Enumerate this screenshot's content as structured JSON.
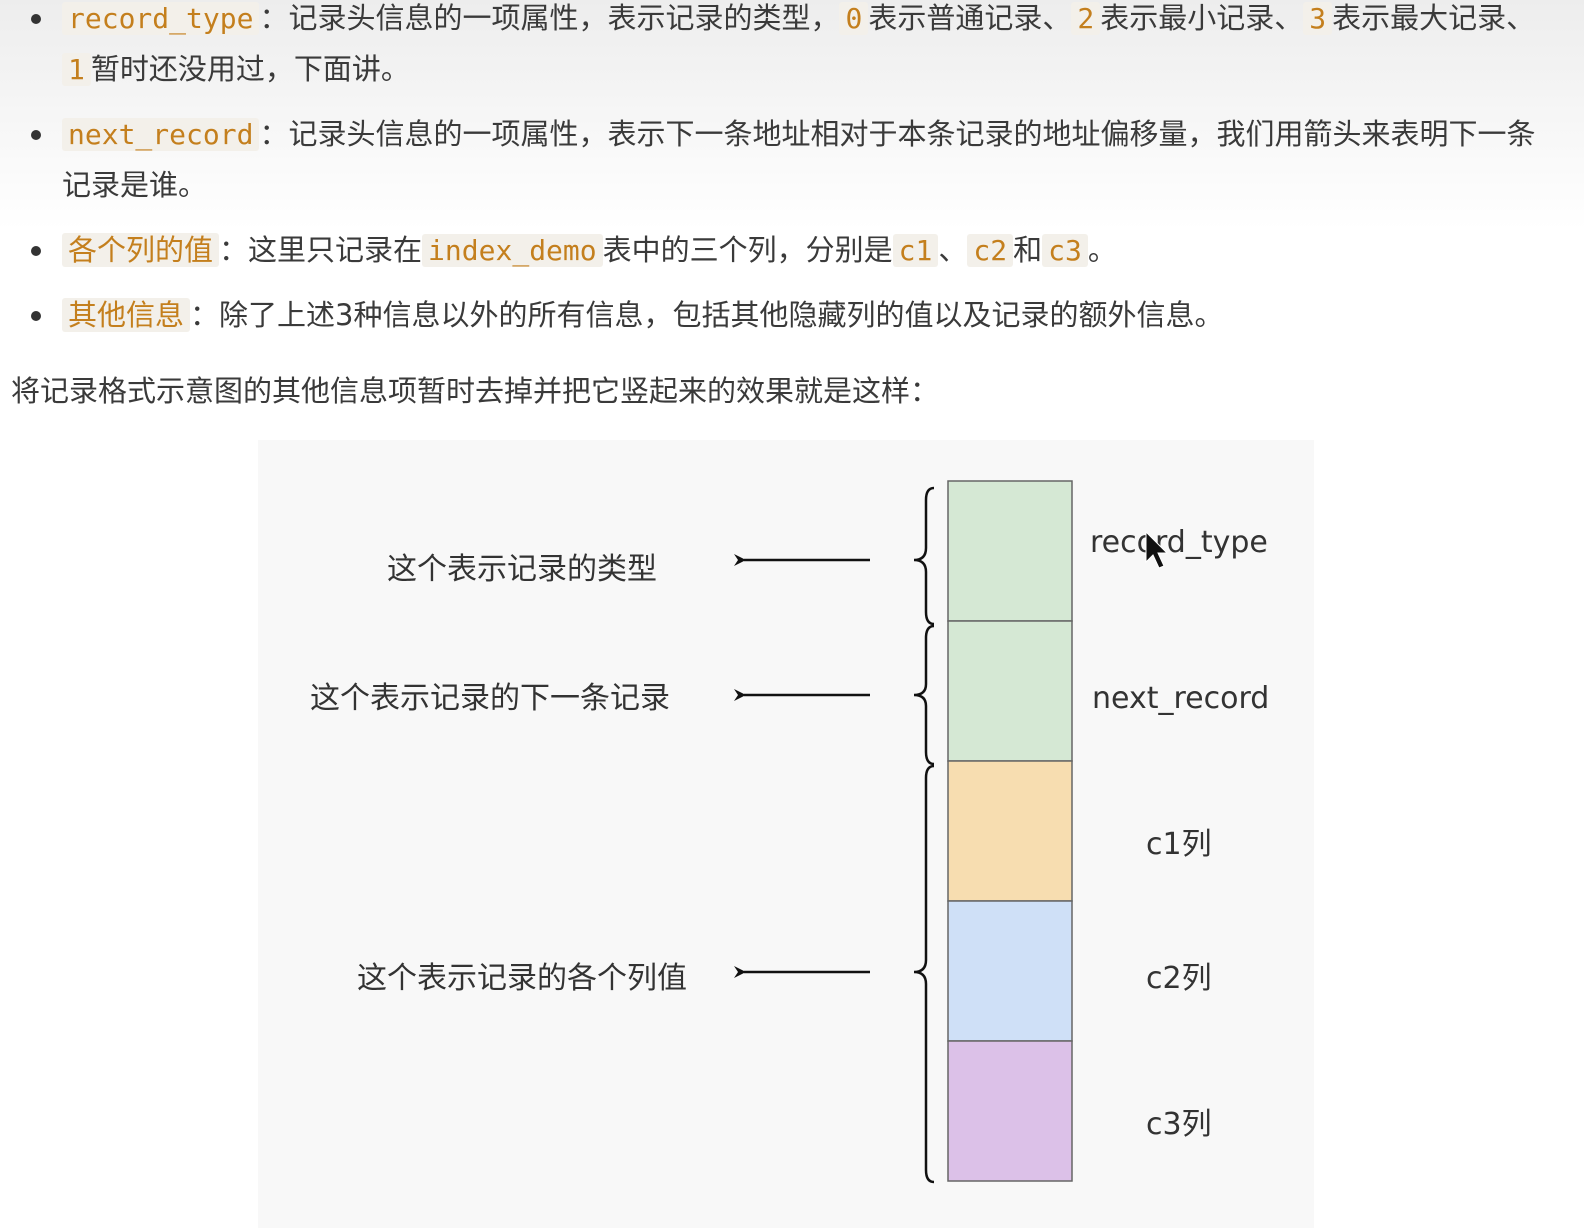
{
  "bullets": [
    {
      "term": "record_type",
      "colon": "：",
      "text_a": "记录头信息的一项属性，表示记录的类型，",
      "v0": "0",
      "text_b": "表示普通记录、",
      "v2": "2",
      "text_c": "表示最小记录、",
      "v3": "3",
      "text_d": "表示最大记录、",
      "v1": "1",
      "text_e": "暂时还没用过，下面讲。"
    },
    {
      "term": "next_record",
      "colon": "：",
      "text": "记录头信息的一项属性，表示下一条地址相对于本条记录的地址偏移量，我们用箭头来表明下一条记录是谁。"
    },
    {
      "term": "各个列的值",
      "colon": "：",
      "text_a": "这里只记录在",
      "table": "index_demo",
      "text_b": "表中的三个列，分别是",
      "c1": "c1",
      "sep1": "、",
      "c2": "c2",
      "and": "和",
      "c3": "c3",
      "end": "。"
    },
    {
      "term": "其他信息",
      "colon": "：",
      "text": "除了上述3种信息以外的所有信息，包括其他隐藏列的值以及记录的额外信息。"
    }
  ],
  "paragraph": "将记录格式示意图的其他信息项暂时去掉并把它竖起来的效果就是这样：",
  "diagram": {
    "left_labels": [
      "这个表示记录的类型",
      "这个表示记录的下一条记录",
      "这个表示记录的各个列值"
    ],
    "cells": [
      {
        "label": "record_type",
        "color": "#d5e8d4"
      },
      {
        "label": "next_record",
        "color": "#d5e8d4"
      },
      {
        "label": "c1列",
        "color": "#f7ddb0"
      },
      {
        "label": "c2列",
        "color": "#cfe0f7"
      },
      {
        "label": "c3列",
        "color": "#dcc1e8"
      }
    ],
    "border_color": "#666666"
  }
}
